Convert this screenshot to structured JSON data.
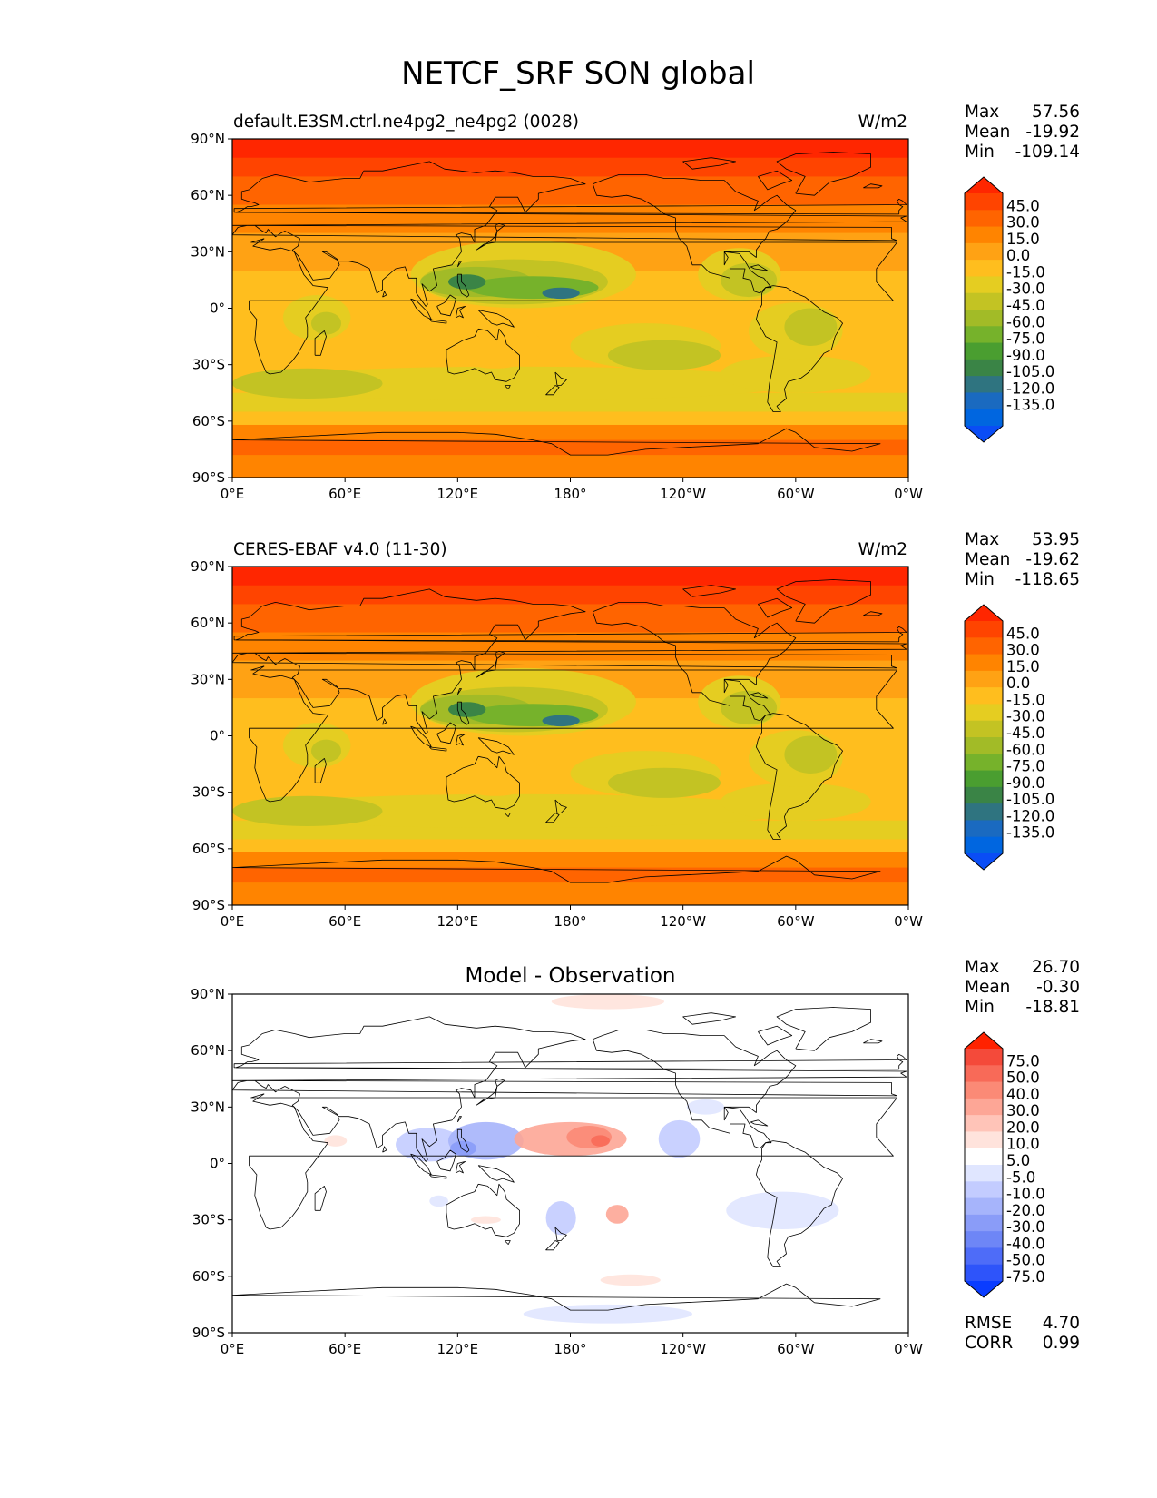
{
  "title": "NETCF_SRF SON global",
  "lat_ticks": [
    "90°N",
    "60°N",
    "30°N",
    "0°",
    "30°S",
    "60°S",
    "90°S"
  ],
  "lon_ticks": [
    "0°E",
    "60°E",
    "120°E",
    "180°",
    "120°W",
    "60°W",
    "0°W"
  ],
  "panels": [
    {
      "left_title": "default.E3SM.ctrl.ne4pg2_ne4pg2 (0028)",
      "center_title": "",
      "units": "W/m2",
      "stats": [
        {
          "label": "Max",
          "value": "57.56"
        },
        {
          "label": "Mean",
          "value": "-19.92"
        },
        {
          "label": "Min",
          "value": "-109.14"
        }
      ],
      "colorbar": {
        "labels": [
          "45.0",
          "30.0",
          "15.0",
          "0.0",
          "-15.0",
          "-30.0",
          "-45.0",
          "-60.0",
          "-75.0",
          "-90.0",
          "-105.0",
          "-120.0",
          "-135.0"
        ],
        "colors": [
          "#ff2600",
          "#ff4400",
          "#ff6400",
          "#ff8400",
          "#ffa214",
          "#ffbe1e",
          "#e5cd21",
          "#c3c323",
          "#a2bb27",
          "#76b22b",
          "#4a9e30",
          "#3a8446",
          "#2f7480",
          "#1a6ac0",
          "#0066e0",
          "#0a4df5"
        ]
      },
      "extra_stats": []
    },
    {
      "left_title": "CERES-EBAF v4.0 (11-30)",
      "center_title": "",
      "units": "W/m2",
      "stats": [
        {
          "label": "Max",
          "value": "53.95"
        },
        {
          "label": "Mean",
          "value": "-19.62"
        },
        {
          "label": "Min",
          "value": "-118.65"
        }
      ],
      "colorbar": {
        "labels": [
          "45.0",
          "30.0",
          "15.0",
          "0.0",
          "-15.0",
          "-30.0",
          "-45.0",
          "-60.0",
          "-75.0",
          "-90.0",
          "-105.0",
          "-120.0",
          "-135.0"
        ],
        "colors": [
          "#ff2600",
          "#ff4400",
          "#ff6400",
          "#ff8400",
          "#ffa214",
          "#ffbe1e",
          "#e5cd21",
          "#c3c323",
          "#a2bb27",
          "#76b22b",
          "#4a9e30",
          "#3a8446",
          "#2f7480",
          "#1a6ac0",
          "#0066e0",
          "#0a4df5"
        ]
      },
      "extra_stats": []
    },
    {
      "left_title": "",
      "center_title": "Model - Observation",
      "units": "",
      "stats": [
        {
          "label": "Max",
          "value": "26.70"
        },
        {
          "label": "Mean",
          "value": "-0.30"
        },
        {
          "label": "Min",
          "value": "-18.81"
        }
      ],
      "colorbar": {
        "labels": [
          "75.0",
          "50.0",
          "40.0",
          "30.0",
          "20.0",
          "10.0",
          "5.0",
          "-5.0",
          "-10.0",
          "-20.0",
          "-30.0",
          "-40.0",
          "-50.0",
          "-75.0"
        ],
        "colors": [
          "#ff2200",
          "#f44a3a",
          "#f86a58",
          "#fb8a76",
          "#fda696",
          "#ffc4b8",
          "#ffe3dc",
          "#ffffff",
          "#e0e6ff",
          "#c3ccff",
          "#a6b4fb",
          "#8a9cf8",
          "#6e86f6",
          "#4e6cf8",
          "#2e54fa",
          "#0a3cff"
        ]
      },
      "extra_stats": [
        {
          "label": "RMSE",
          "value": "4.70"
        },
        {
          "label": "CORR",
          "value": "0.99"
        }
      ]
    }
  ]
}
